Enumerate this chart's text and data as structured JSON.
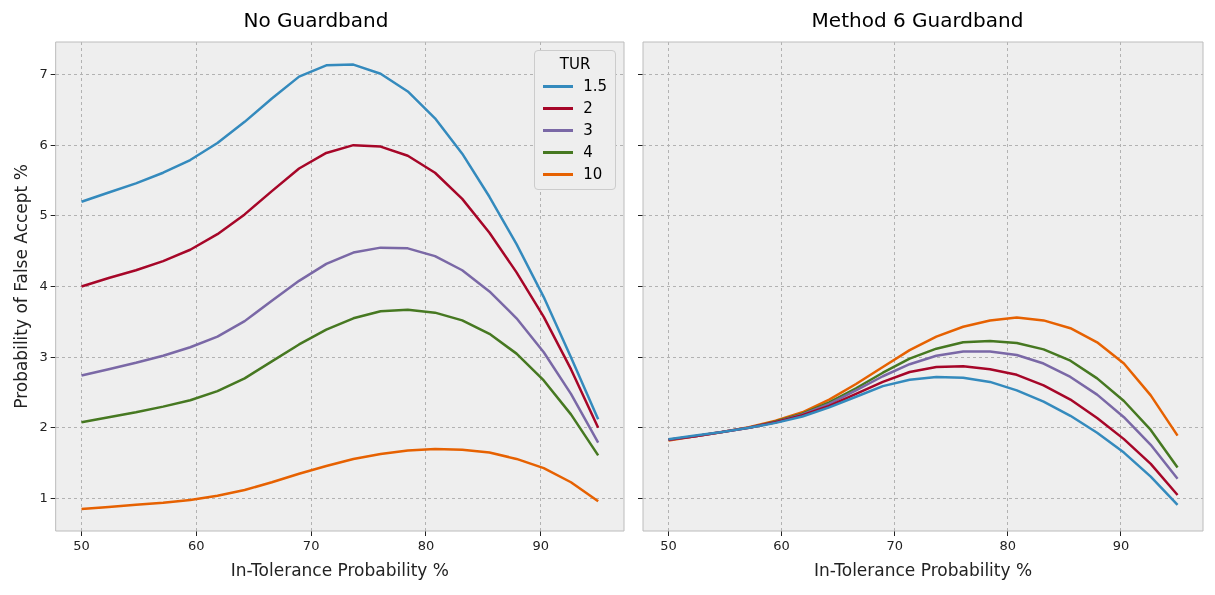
{
  "chart_data": [
    {
      "type": "line",
      "title": "No Guardband",
      "xlabel": "In-Tolerance Probability %",
      "ylabel": "Probability of False Accept %",
      "legend_title": "TUR",
      "legend": "top right",
      "grid": true,
      "x": [
        50,
        52.37,
        54.74,
        57.11,
        59.47,
        61.84,
        64.21,
        66.58,
        68.95,
        71.32,
        73.68,
        76.05,
        78.42,
        80.79,
        83.16,
        85.53,
        87.89,
        90.26,
        92.63,
        95
      ],
      "xlim": [
        47.75,
        97.25
      ],
      "xticks": [
        50,
        60,
        70,
        80,
        90
      ],
      "ylim": [
        0.54,
        7.46
      ],
      "yticks": [
        1,
        2,
        3,
        4,
        5,
        6,
        7
      ],
      "series": [
        {
          "name": "1.5",
          "color": "#348abd",
          "values": [
            5.2,
            5.33,
            5.46,
            5.61,
            5.79,
            6.03,
            6.33,
            6.66,
            6.97,
            7.13,
            7.14,
            7.01,
            6.76,
            6.38,
            5.88,
            5.27,
            4.6,
            3.85,
            3.0,
            2.12
          ]
        },
        {
          "name": "2",
          "color": "#a60628",
          "values": [
            4.0,
            4.12,
            4.23,
            4.36,
            4.52,
            4.74,
            5.02,
            5.35,
            5.67,
            5.89,
            6.0,
            5.98,
            5.85,
            5.61,
            5.24,
            4.76,
            4.2,
            3.57,
            2.83,
            2.0
          ]
        },
        {
          "name": "3",
          "color": "#7a68a6",
          "values": [
            2.74,
            2.83,
            2.92,
            3.02,
            3.14,
            3.29,
            3.51,
            3.8,
            4.08,
            4.32,
            4.48,
            4.55,
            4.54,
            4.43,
            4.23,
            3.93,
            3.55,
            3.07,
            2.48,
            1.79
          ]
        },
        {
          "name": "4",
          "color": "#467821",
          "values": [
            2.08,
            2.15,
            2.22,
            2.3,
            2.39,
            2.52,
            2.7,
            2.94,
            3.18,
            3.39,
            3.55,
            3.65,
            3.67,
            3.63,
            3.52,
            3.33,
            3.05,
            2.67,
            2.19,
            1.61
          ]
        },
        {
          "name": "10",
          "color": "#e66101",
          "values": [
            0.85,
            0.88,
            0.91,
            0.94,
            0.98,
            1.04,
            1.12,
            1.23,
            1.35,
            1.46,
            1.56,
            1.63,
            1.68,
            1.7,
            1.69,
            1.65,
            1.56,
            1.43,
            1.23,
            0.96
          ]
        }
      ]
    },
    {
      "type": "line",
      "title": "Method 6 Guardband",
      "xlabel": "In-Tolerance Probability %",
      "grid": true,
      "tick_labels": "x",
      "x": [
        50,
        52.37,
        54.74,
        57.11,
        59.47,
        61.84,
        64.21,
        66.58,
        68.95,
        71.32,
        73.68,
        76.05,
        78.42,
        80.79,
        83.16,
        85.53,
        87.89,
        90.26,
        92.63,
        95
      ],
      "xlim": [
        47.75,
        97.25
      ],
      "xticks": [
        50,
        60,
        70,
        80,
        90
      ],
      "ylim": [
        0.54,
        7.46
      ],
      "yticks": [
        1,
        2,
        3,
        4,
        5,
        6,
        7
      ],
      "series": [
        {
          "color": "#348abd",
          "values": [
            1.84,
            1.89,
            1.94,
            2.0,
            2.07,
            2.16,
            2.29,
            2.44,
            2.59,
            2.68,
            2.72,
            2.71,
            2.65,
            2.53,
            2.37,
            2.17,
            1.93,
            1.65,
            1.31,
            0.91
          ]
        },
        {
          "color": "#a60628",
          "values": [
            1.83,
            1.88,
            1.94,
            2.0,
            2.08,
            2.18,
            2.31,
            2.48,
            2.65,
            2.79,
            2.86,
            2.87,
            2.83,
            2.75,
            2.6,
            2.4,
            2.14,
            1.84,
            1.49,
            1.05
          ]
        },
        {
          "color": "#7a68a6",
          "values": [
            1.83,
            1.88,
            1.94,
            2.0,
            2.08,
            2.19,
            2.34,
            2.53,
            2.73,
            2.9,
            3.02,
            3.08,
            3.08,
            3.03,
            2.91,
            2.72,
            2.47,
            2.15,
            1.76,
            1.28
          ]
        },
        {
          "color": "#467821",
          "values": [
            null,
            null,
            null,
            2.0,
            2.09,
            2.2,
            2.36,
            2.56,
            2.78,
            2.98,
            3.12,
            3.21,
            3.23,
            3.2,
            3.11,
            2.95,
            2.7,
            2.38,
            1.97,
            1.44
          ]
        },
        {
          "color": "#e66101",
          "values": [
            1.82,
            1.88,
            1.94,
            2.01,
            2.1,
            2.22,
            2.4,
            2.62,
            2.86,
            3.1,
            3.29,
            3.43,
            3.52,
            3.56,
            3.52,
            3.41,
            3.21,
            2.91,
            2.46,
            1.89
          ]
        }
      ]
    }
  ]
}
